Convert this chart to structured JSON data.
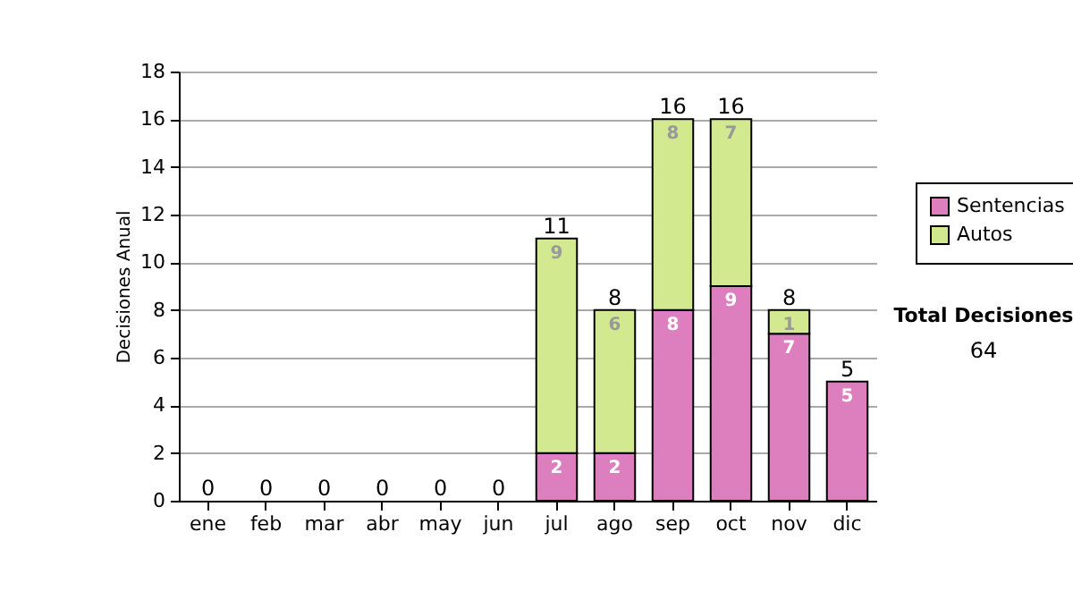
{
  "chart_data": {
    "type": "bar",
    "stacked": true,
    "ylabel": "Decisiones Anual",
    "categories": [
      "ene",
      "feb",
      "mar",
      "abr",
      "may",
      "jun",
      "jul",
      "ago",
      "sep",
      "oct",
      "nov",
      "dic"
    ],
    "series": [
      {
        "name": "Sentencias",
        "color": "#dd7fbf",
        "values": [
          0,
          0,
          0,
          0,
          0,
          0,
          2,
          2,
          8,
          9,
          7,
          5
        ],
        "value_labels": [
          null,
          null,
          null,
          null,
          null,
          null,
          "2",
          "2",
          "8",
          "9",
          "7",
          "5"
        ]
      },
      {
        "name": "Autos",
        "color": "#d2e990",
        "values": [
          0,
          0,
          0,
          0,
          0,
          0,
          9,
          6,
          8,
          7,
          1,
          0
        ],
        "value_labels": [
          null,
          null,
          null,
          null,
          null,
          null,
          "9",
          "6",
          "8",
          "7",
          "1",
          null
        ]
      }
    ],
    "totals": [
      "0",
      "0",
      "0",
      "0",
      "0",
      "0",
      "11",
      "8",
      "16",
      "16",
      "8",
      "5"
    ],
    "ylim": [
      0,
      18
    ],
    "yticks": [
      0,
      2,
      4,
      6,
      8,
      10,
      12,
      14,
      16,
      18
    ],
    "grid": "y",
    "legend": "right",
    "annotations": [
      "Total Decisiones",
      "64"
    ]
  }
}
